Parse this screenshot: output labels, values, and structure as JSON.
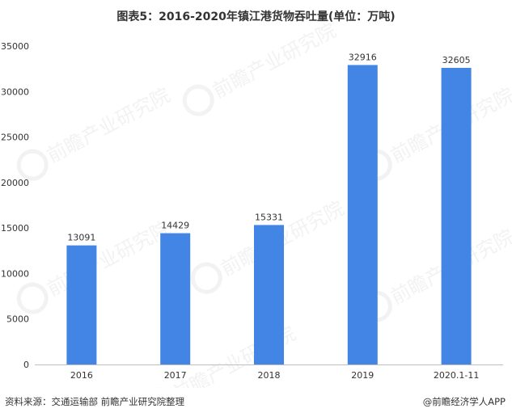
{
  "title": "图表5：2016-2020年镇江港货物吞吐量(单位：万吨)",
  "footer": {
    "source": "资料来源：交通运输部 前瞻产业研究院整理",
    "brand": "@前瞻经济学人APP"
  },
  "watermark": {
    "name": "前瞻产业研究院"
  },
  "colors": {
    "bar": "#4385e4",
    "axis": "#bfbfbf",
    "text": "#333333"
  },
  "chart_data": {
    "type": "bar",
    "title": "图表5：2016-2020年镇江港货物吞吐量(单位：万吨)",
    "categories": [
      "2016",
      "2017",
      "2018",
      "2019",
      "2020.1-11"
    ],
    "values": [
      13091,
      14429,
      15331,
      32916,
      32605
    ],
    "data_labels": [
      "13091",
      "14429",
      "15331",
      "32916",
      "32605"
    ],
    "y_ticks": [
      0,
      5000,
      10000,
      15000,
      20000,
      25000,
      30000,
      35000
    ],
    "ylim": [
      0,
      35000
    ],
    "grid": false,
    "legend": "none"
  }
}
